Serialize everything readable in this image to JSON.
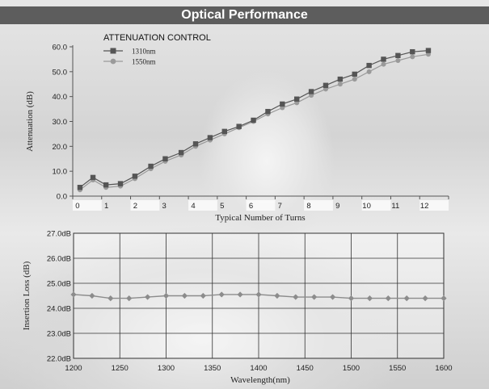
{
  "page": {
    "title": "Optical Performance"
  },
  "chart_data": [
    {
      "type": "line",
      "title": "ATTENUATION CONTROL",
      "xlabel": "Typical Number of Turns",
      "ylabel": "Attenuation (dB)",
      "ylim": [
        0,
        60
      ],
      "xlim": [
        0,
        13
      ],
      "y_ticks": [
        "0.0",
        "10.0",
        "20.0",
        "30.0",
        "40.0",
        "50.0",
        "60.0"
      ],
      "x_ticks": [
        "0",
        "1",
        "2",
        "3",
        "4",
        "5",
        "6",
        "7",
        "8",
        "9",
        "10",
        "11",
        "12"
      ],
      "legend_position": "top-left",
      "series": [
        {
          "name": "1310nm",
          "color": "#555555",
          "marker": "square",
          "x": [
            0.25,
            0.7,
            1.15,
            1.65,
            2.15,
            2.7,
            3.2,
            3.75,
            4.25,
            4.75,
            5.25,
            5.75,
            6.25,
            6.75,
            7.25,
            7.75,
            8.25,
            8.75,
            9.25,
            9.75,
            10.25,
            10.75,
            11.25,
            11.75,
            12.3
          ],
          "y": [
            3.5,
            7.5,
            4.5,
            5.0,
            8.0,
            12.0,
            15.0,
            17.5,
            21.0,
            23.5,
            26.0,
            28.0,
            30.5,
            34.0,
            37.0,
            39.0,
            42.0,
            44.5,
            47.0,
            49.0,
            52.5,
            55.0,
            56.5,
            58.0,
            58.5
          ]
        },
        {
          "name": "1550nm",
          "color": "#9a9a9a",
          "marker": "circle",
          "x": [
            0.25,
            0.7,
            1.15,
            1.65,
            2.15,
            2.7,
            3.2,
            3.75,
            4.25,
            4.75,
            5.25,
            5.75,
            6.25,
            6.75,
            7.25,
            7.75,
            8.25,
            8.75,
            9.25,
            9.75,
            10.25,
            10.75,
            11.25,
            11.75,
            12.3
          ],
          "y": [
            2.5,
            6.5,
            3.5,
            4.0,
            7.0,
            11.0,
            14.0,
            16.5,
            20.0,
            22.5,
            25.0,
            27.5,
            30.0,
            33.0,
            35.5,
            37.5,
            40.5,
            43.0,
            45.0,
            47.0,
            50.0,
            53.0,
            54.5,
            56.0,
            57.0
          ]
        }
      ]
    },
    {
      "type": "line",
      "title": "",
      "xlabel": "Wavelength(nm)",
      "ylabel": "Insertion Loss (dB)",
      "ylim": [
        22,
        27
      ],
      "xlim": [
        1200,
        1600
      ],
      "y_ticks": [
        "22.0dB",
        "23.0dB",
        "24.0dB",
        "25.0dB",
        "26.0dB",
        "27.0dB"
      ],
      "x_ticks": [
        "1200",
        "1250",
        "1300",
        "1350",
        "1400",
        "1450",
        "1500",
        "1550",
        "1600"
      ],
      "grid": true,
      "series": [
        {
          "color": "#8c8c8c",
          "marker": "diamond",
          "x": [
            1200,
            1220,
            1240,
            1260,
            1280,
            1300,
            1320,
            1340,
            1360,
            1380,
            1400,
            1420,
            1440,
            1460,
            1480,
            1500,
            1520,
            1540,
            1560,
            1580,
            1600
          ],
          "y": [
            24.55,
            24.5,
            24.4,
            24.4,
            24.45,
            24.5,
            24.5,
            24.5,
            24.55,
            24.55,
            24.55,
            24.5,
            24.45,
            24.45,
            24.45,
            24.4,
            24.4,
            24.4,
            24.4,
            24.4,
            24.4
          ]
        }
      ]
    }
  ]
}
